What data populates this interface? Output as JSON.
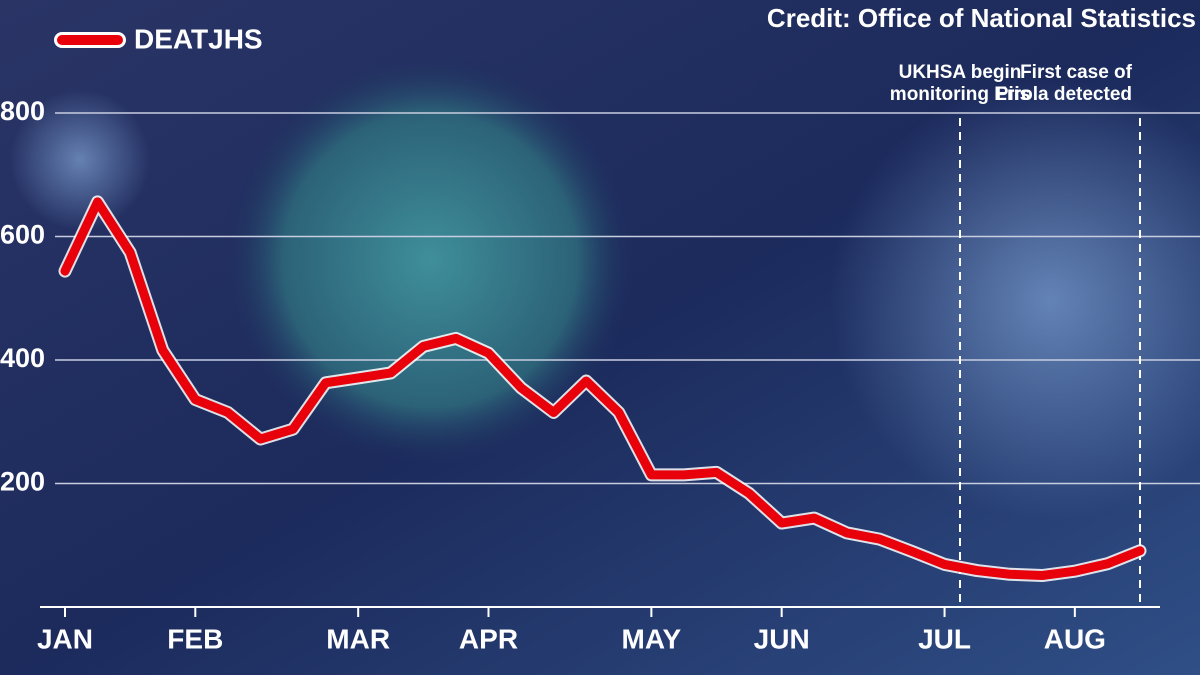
{
  "chart_data": {
    "type": "line",
    "credit": "Credit: Office of National Statistics",
    "categories": [
      "JAN",
      null,
      null,
      null,
      "FEB",
      null,
      null,
      null,
      null,
      "MAR",
      null,
      null,
      null,
      "APR",
      null,
      null,
      null,
      null,
      "MAY",
      null,
      null,
      null,
      "JUN",
      null,
      null,
      null,
      null,
      "JUL",
      null,
      null,
      null,
      "AUG",
      null,
      null
    ],
    "series": [
      {
        "name": "DEATJHS",
        "color": "#e8000b",
        "values": [
          544,
          656,
          574,
          416,
          336,
          315,
          272,
          288,
          363,
          371,
          379,
          422,
          435,
          411,
          355,
          315,
          366,
          315,
          214,
          214,
          218,
          184,
          136,
          144,
          120,
          110,
          90,
          69,
          59,
          53,
          51,
          58,
          70,
          91
        ]
      }
    ],
    "ylim": [
      0,
      800
    ],
    "yticks": [
      200,
      400,
      600,
      800
    ],
    "grid": true,
    "annotations": [
      {
        "lines": [
          "UKHSA begin",
          "monitoring Eris"
        ]
      },
      {
        "lines": [
          "First case of",
          "Pirola detected"
        ]
      }
    ]
  }
}
